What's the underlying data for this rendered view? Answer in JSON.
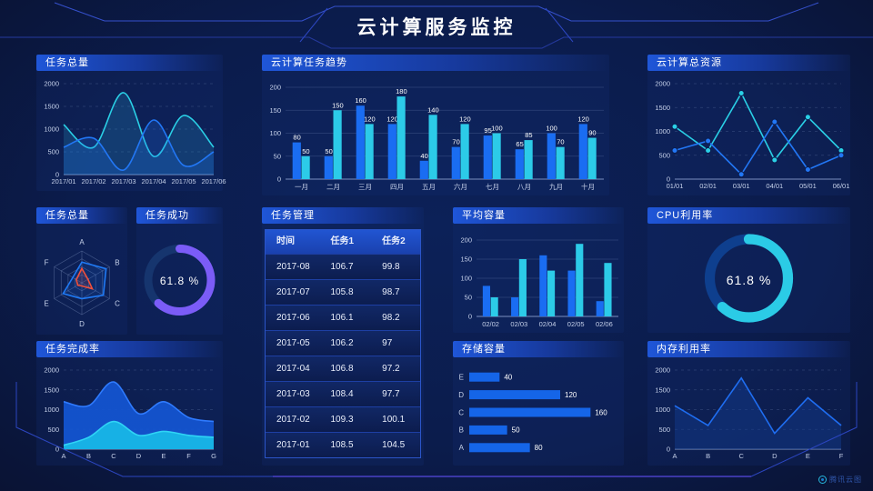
{
  "title": "云计算服务监控",
  "watermark": "腾讯云图",
  "colors": {
    "blue": "#1a6df2",
    "cyan": "#2ccbe8",
    "purple": "#7b5cf7",
    "red": "#f0503c",
    "panel_header": "#1f56d8"
  },
  "panels": {
    "task_total": {
      "title": "任务总量"
    },
    "task_trend": {
      "title": "云计算任务趋势"
    },
    "total_resources": {
      "title": "云计算总资源"
    },
    "task_radar": {
      "title": "任务总量"
    },
    "task_success": {
      "title": "任务成功",
      "value": "61.8 %"
    },
    "task_table": {
      "title": "任务管理",
      "headers": [
        "时间",
        "任务1",
        "任务2"
      ],
      "rows": [
        [
          "2017-08",
          "106.7",
          "99.8"
        ],
        [
          "2017-07",
          "105.8",
          "98.7"
        ],
        [
          "2017-06",
          "106.1",
          "98.2"
        ],
        [
          "2017-05",
          "106.2",
          "97"
        ],
        [
          "2017-04",
          "106.8",
          "97.2"
        ],
        [
          "2017-03",
          "108.4",
          "97.7"
        ],
        [
          "2017-02",
          "109.3",
          "100.1"
        ],
        [
          "2017-01",
          "108.5",
          "104.5"
        ]
      ]
    },
    "avg_capacity": {
      "title": "平均容量"
    },
    "cpu": {
      "title": "CPU利用率",
      "value": "61.8 %"
    },
    "completion": {
      "title": "任务完成率"
    },
    "storage": {
      "title": "存储容量"
    },
    "memory": {
      "title": "内存利用率"
    }
  },
  "chart_data": [
    {
      "id": "task_total",
      "type": "area",
      "title": "任务总量",
      "grid": "dashed",
      "x": [
        "2017/01",
        "2017/02",
        "2017/03",
        "2017/04",
        "2017/05",
        "2017/06"
      ],
      "ylim": [
        0,
        2000
      ],
      "ystep": 500,
      "series": [
        {
          "name": "cyan",
          "color": "#2ad0e6",
          "fill": "#2aa0d2",
          "fillOpacity": 0.22,
          "smooth": true,
          "values": [
            1100,
            600,
            1800,
            400,
            1300,
            600
          ]
        },
        {
          "name": "blue",
          "color": "#2277f5",
          "fill": "#2277f5",
          "fillOpacity": 0.22,
          "smooth": true,
          "values": [
            600,
            800,
            100,
            1200,
            200,
            500
          ]
        }
      ]
    },
    {
      "id": "task_trend",
      "type": "bar",
      "title": "云计算任务趋势",
      "labels": true,
      "categories": [
        "一月",
        "二月",
        "三月",
        "四月",
        "五月",
        "六月",
        "七月",
        "八月",
        "九月",
        "十月"
      ],
      "ylim": [
        0,
        200
      ],
      "ystep": 50,
      "series": [
        {
          "name": "任务1",
          "color": "#1a6df2",
          "values": [
            80,
            50,
            160,
            120,
            40,
            70,
            95,
            65,
            100,
            120
          ]
        },
        {
          "name": "任务2",
          "color": "#2ccbe8",
          "values": [
            50,
            150,
            120,
            180,
            140,
            120,
            100,
            85,
            70,
            90
          ]
        }
      ]
    },
    {
      "id": "total_resources",
      "type": "line",
      "title": "云计算总资源",
      "grid": "dashed",
      "markers": true,
      "x": [
        "01/01",
        "02/01",
        "03/01",
        "04/01",
        "05/01",
        "06/01"
      ],
      "ylim": [
        0,
        2000
      ],
      "ystep": 500,
      "series": [
        {
          "name": "cyan",
          "color": "#2ad0e6",
          "values": [
            1100,
            600,
            1800,
            400,
            1300,
            600
          ]
        },
        {
          "name": "blue",
          "color": "#2277f5",
          "values": [
            600,
            800,
            100,
            1200,
            200,
            500
          ]
        }
      ]
    },
    {
      "id": "task_radar",
      "type": "radar",
      "title": "任务总量",
      "indicators": [
        "A",
        "B",
        "C",
        "D",
        "E",
        "F"
      ],
      "max": 100,
      "series": [
        {
          "name": "blue",
          "color": "#1f7af5",
          "values": [
            65,
            88,
            78,
            50,
            68,
            33
          ]
        },
        {
          "name": "red",
          "color": "#f0503c",
          "values": [
            45,
            22,
            38,
            10,
            15,
            20
          ]
        }
      ]
    },
    {
      "id": "task_success",
      "type": "donut",
      "title": "任务成功",
      "value": 61.8,
      "label": "61.8 %",
      "color": "#7b5cf7",
      "track": "#16356e"
    },
    {
      "id": "avg_capacity",
      "type": "bar",
      "title": "平均容量",
      "labels": false,
      "categories": [
        "02/02",
        "02/03",
        "02/04",
        "02/05",
        "02/06"
      ],
      "ylim": [
        0,
        200
      ],
      "ystep": 50,
      "series": [
        {
          "name": "s1",
          "color": "#1a6df2",
          "values": [
            80,
            50,
            160,
            120,
            40
          ]
        },
        {
          "name": "s2",
          "color": "#2ccbe8",
          "values": [
            50,
            150,
            120,
            190,
            140
          ]
        }
      ]
    },
    {
      "id": "cpu",
      "type": "donut",
      "title": "CPU利用率",
      "value": 61.8,
      "label": "61.8 %",
      "color": "#2bcbe6",
      "track": "#0e3f8e"
    },
    {
      "id": "completion",
      "type": "area",
      "title": "任务完成率",
      "grid": "dashed",
      "x": [
        "A",
        "B",
        "C",
        "D",
        "E",
        "F",
        "G"
      ],
      "ylim": [
        0,
        2000
      ],
      "ystep": 500,
      "series": [
        {
          "name": "blue",
          "color": "#2f7bff",
          "fill": "#1356d4",
          "fillOpacity": 0.92,
          "smooth": true,
          "values": [
            1200,
            1100,
            1700,
            900,
            1200,
            800,
            700
          ]
        },
        {
          "name": "cyan",
          "color": "#2fd4f5",
          "fill": "#17b4e6",
          "fillOpacity": 0.98,
          "smooth": true,
          "values": [
            100,
            300,
            700,
            350,
            450,
            350,
            300
          ]
        }
      ]
    },
    {
      "id": "storage",
      "type": "hbar",
      "title": "存储容量",
      "color": "#1565e8",
      "xmax": 168,
      "categories": [
        "E",
        "D",
        "C",
        "B",
        "A"
      ],
      "values": [
        40,
        120,
        160,
        50,
        80
      ]
    },
    {
      "id": "memory",
      "type": "line",
      "title": "内存利用率",
      "grid": "dashed",
      "x": [
        "A",
        "B",
        "C",
        "D",
        "E",
        "F"
      ],
      "ylim": [
        0,
        2000
      ],
      "ystep": 500,
      "series": [
        {
          "name": "blue",
          "color": "#1f6ef2",
          "fill": "#123a8c",
          "fillOpacity": 0.5,
          "values": [
            1100,
            600,
            1800,
            400,
            1300,
            600
          ]
        }
      ]
    }
  ]
}
